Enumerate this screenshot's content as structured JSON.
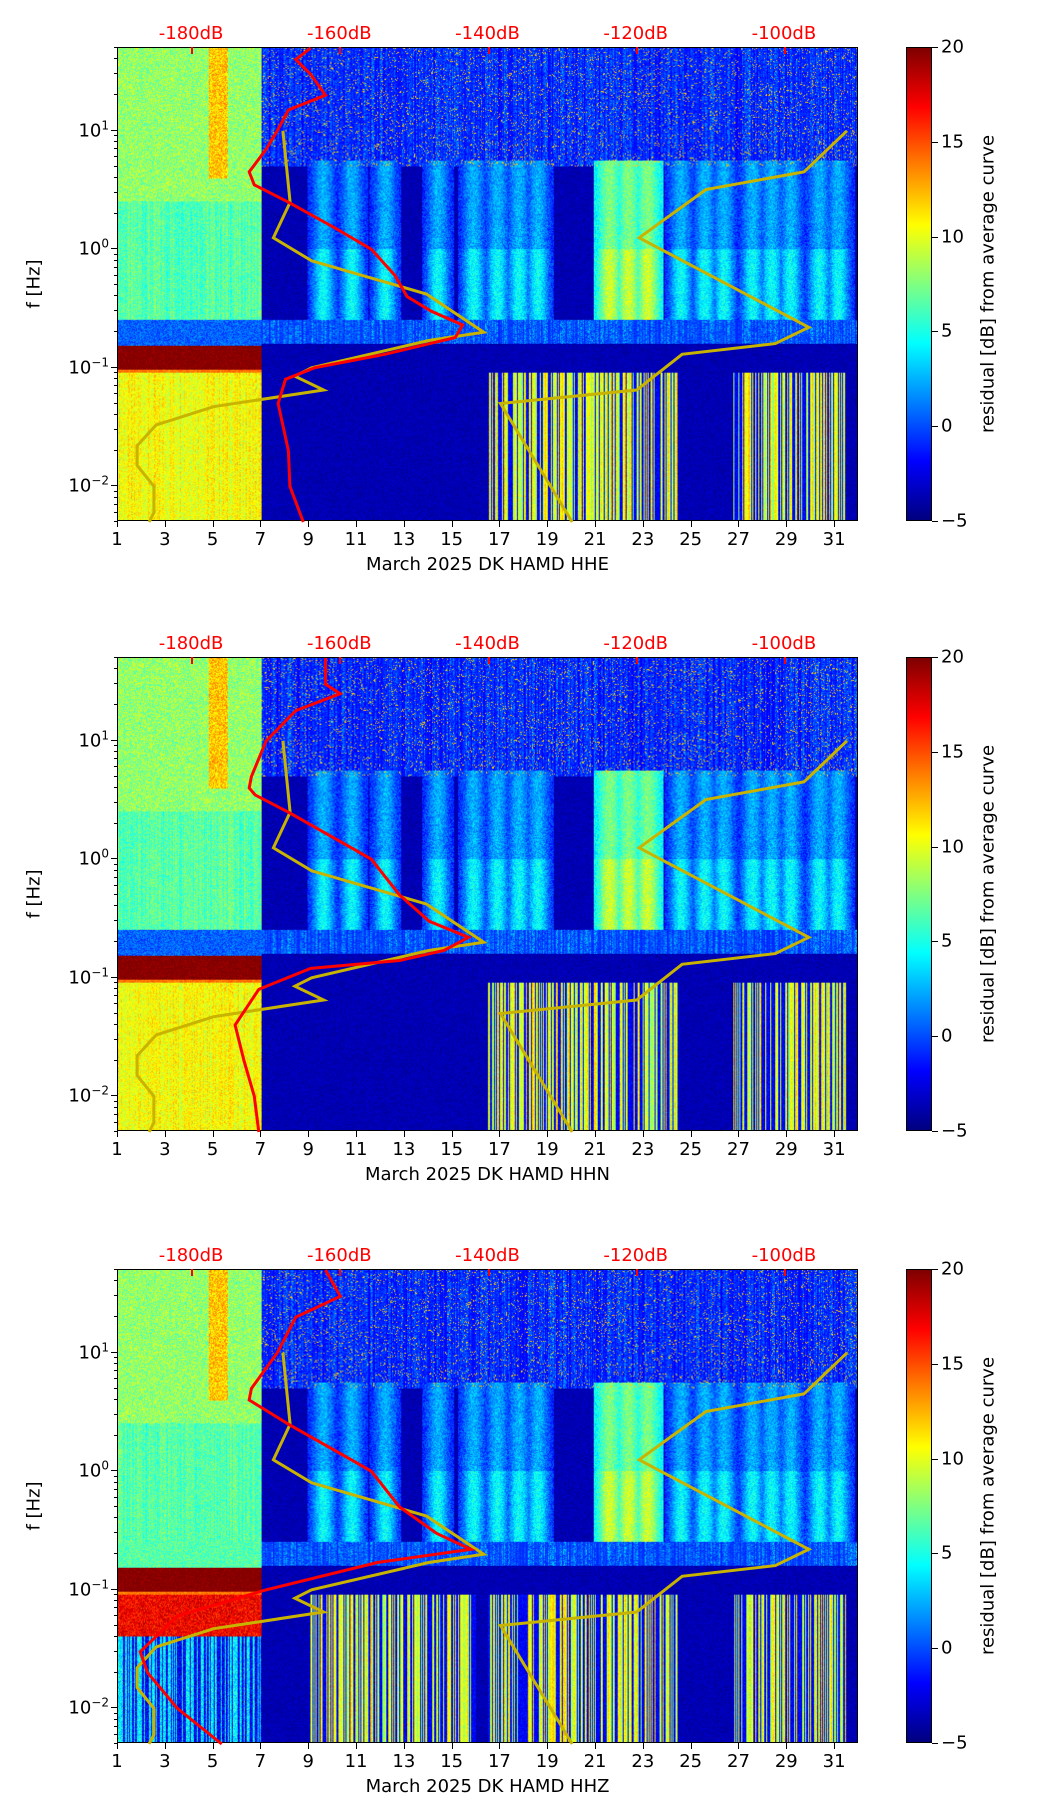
{
  "chart_data": [
    {
      "type": "heatmap",
      "title": "",
      "xlabel": "March 2025 DK HAMD  HHE",
      "ylabel": "f [Hz]",
      "xlim": [
        1,
        32
      ],
      "ylim": [
        0.005,
        50
      ],
      "yscale": "log",
      "x_ticks": [
        "1",
        "3",
        "5",
        "7",
        "9",
        "11",
        "13",
        "15",
        "17",
        "19",
        "21",
        "23",
        "25",
        "27",
        "29",
        "31"
      ],
      "y_ticks": [
        {
          "base": "10",
          "exp": "−2",
          "value": 0.01
        },
        {
          "base": "10",
          "exp": "−1",
          "value": 0.1
        },
        {
          "base": "10",
          "exp": "0",
          "value": 1
        },
        {
          "base": "10",
          "exp": "1",
          "value": 10
        }
      ],
      "top_axis": {
        "ticks": [
          {
            "label": "-180dB",
            "dB": -180
          },
          {
            "label": "-160dB",
            "dB": -160
          },
          {
            "label": "-140dB",
            "dB": -140
          },
          {
            "label": "-120dB",
            "dB": -120
          },
          {
            "label": "-100dB",
            "dB": -100
          }
        ],
        "range_dB": [
          -190,
          -90
        ],
        "color": "#ff0000"
      },
      "colorbar": {
        "label": "residual [dB] from average curve",
        "range": [
          -5,
          20
        ],
        "ticks": [
          "−5",
          "0",
          "5",
          "10",
          "15",
          "20"
        ],
        "colormap": "jet"
      },
      "average_curve": {
        "color": "#ff0000",
        "points_dB_f": [
          [
            -164,
            50
          ],
          [
            -166,
            40
          ],
          [
            -164,
            30
          ],
          [
            -162,
            20
          ],
          [
            -167,
            15
          ],
          [
            -168.5,
            10
          ],
          [
            -170,
            7
          ],
          [
            -172.3,
            4.5
          ],
          [
            -171.6,
            3.5
          ],
          [
            -167,
            2.5
          ],
          [
            -160.6,
            1.5
          ],
          [
            -155.8,
            1.0
          ],
          [
            -152.6,
            0.6
          ],
          [
            -151,
            0.4
          ],
          [
            -147.7,
            0.3
          ],
          [
            -143.5,
            0.23
          ],
          [
            -144.5,
            0.18
          ],
          [
            -154,
            0.13
          ],
          [
            -163.5,
            0.1
          ],
          [
            -167.4,
            0.08
          ],
          [
            -168.4,
            0.05
          ],
          [
            -167,
            0.02
          ],
          [
            -166.8,
            0.01
          ],
          [
            -165,
            0.005
          ]
        ]
      },
      "noise_models": {
        "color": "#c8b400",
        "low": [
          [
            7.9,
            10
          ],
          [
            8.2,
            2.5
          ],
          [
            7.5,
            1.25
          ],
          [
            9.1,
            0.8
          ],
          [
            13.9,
            0.42
          ],
          [
            16.3,
            0.2
          ],
          [
            14,
            0.17
          ],
          [
            9.1,
            0.1
          ],
          [
            8.4,
            0.085
          ],
          [
            9.6,
            0.065
          ],
          [
            5,
            0.047
          ],
          [
            2.6,
            0.033
          ],
          [
            1.8,
            0.022
          ],
          [
            1.8,
            0.015
          ],
          [
            2.5,
            0.01
          ],
          [
            2.5,
            0.006
          ],
          [
            2.3,
            0.005
          ]
        ],
        "high": [
          [
            31.5,
            10
          ],
          [
            29.7,
            4.5
          ],
          [
            25.6,
            3.2
          ],
          [
            22.8,
            1.25
          ],
          [
            29.9,
            0.22
          ],
          [
            28.5,
            0.16
          ],
          [
            24.6,
            0.13
          ],
          [
            22.7,
            0.065
          ],
          [
            17,
            0.05
          ],
          [
            20,
            0.005
          ]
        ]
      }
    },
    {
      "type": "heatmap",
      "title": "",
      "xlabel": "March 2025 DK HAMD  HHN",
      "ylabel": "f [Hz]",
      "xlim": [
        1,
        32
      ],
      "ylim": [
        0.005,
        50
      ],
      "yscale": "log",
      "x_ticks": [
        "1",
        "3",
        "5",
        "7",
        "9",
        "11",
        "13",
        "15",
        "17",
        "19",
        "21",
        "23",
        "25",
        "27",
        "29",
        "31"
      ],
      "y_ticks": [
        {
          "base": "10",
          "exp": "−2",
          "value": 0.01
        },
        {
          "base": "10",
          "exp": "−1",
          "value": 0.1
        },
        {
          "base": "10",
          "exp": "0",
          "value": 1
        },
        {
          "base": "10",
          "exp": "1",
          "value": 10
        }
      ],
      "top_axis": {
        "ticks": [
          {
            "label": "-180dB",
            "dB": -180
          },
          {
            "label": "-160dB",
            "dB": -160
          },
          {
            "label": "-140dB",
            "dB": -140
          },
          {
            "label": "-120dB",
            "dB": -120
          },
          {
            "label": "-100dB",
            "dB": -100
          }
        ],
        "range_dB": [
          -190,
          -90
        ],
        "color": "#ff0000"
      },
      "colorbar": {
        "label": "residual [dB] from average curve",
        "range": [
          -5,
          20
        ],
        "ticks": [
          "−5",
          "0",
          "5",
          "10",
          "15",
          "20"
        ],
        "colormap": "jet"
      },
      "average_curve": {
        "color": "#ff0000",
        "points_dB_f": [
          [
            -162,
            50
          ],
          [
            -162,
            30
          ],
          [
            -160,
            25
          ],
          [
            -166,
            18
          ],
          [
            -170,
            10
          ],
          [
            -172,
            5
          ],
          [
            -172.3,
            4
          ],
          [
            -171.5,
            3.5
          ],
          [
            -167,
            2.5
          ],
          [
            -158,
            1.2
          ],
          [
            -155.8,
            1.0
          ],
          [
            -152,
            0.5
          ],
          [
            -148,
            0.3
          ],
          [
            -142.7,
            0.22
          ],
          [
            -146,
            0.17
          ],
          [
            -152,
            0.14
          ],
          [
            -164,
            0.12
          ],
          [
            -171,
            0.08
          ],
          [
            -174.2,
            0.04
          ],
          [
            -173,
            0.02
          ],
          [
            -171.6,
            0.01
          ],
          [
            -171,
            0.005
          ]
        ]
      },
      "noise_models": {
        "color": "#c8b400",
        "low": [
          [
            7.9,
            10
          ],
          [
            8.2,
            2.5
          ],
          [
            7.5,
            1.25
          ],
          [
            9.1,
            0.8
          ],
          [
            13.9,
            0.42
          ],
          [
            16.3,
            0.2
          ],
          [
            14,
            0.17
          ],
          [
            9.1,
            0.1
          ],
          [
            8.4,
            0.085
          ],
          [
            9.6,
            0.065
          ],
          [
            5,
            0.047
          ],
          [
            2.6,
            0.033
          ],
          [
            1.8,
            0.022
          ],
          [
            1.8,
            0.015
          ],
          [
            2.5,
            0.01
          ],
          [
            2.5,
            0.006
          ],
          [
            2.3,
            0.005
          ]
        ],
        "high": [
          [
            31.5,
            10
          ],
          [
            29.7,
            4.5
          ],
          [
            25.6,
            3.2
          ],
          [
            22.8,
            1.25
          ],
          [
            29.9,
            0.22
          ],
          [
            28.5,
            0.16
          ],
          [
            24.6,
            0.13
          ],
          [
            22.7,
            0.065
          ],
          [
            17,
            0.05
          ],
          [
            20,
            0.005
          ]
        ]
      }
    },
    {
      "type": "heatmap",
      "title": "",
      "xlabel": "March 2025 DK HAMD  HHZ",
      "ylabel": "f [Hz]",
      "xlim": [
        1,
        32
      ],
      "ylim": [
        0.005,
        50
      ],
      "yscale": "log",
      "x_ticks": [
        "1",
        "3",
        "5",
        "7",
        "9",
        "11",
        "13",
        "15",
        "17",
        "19",
        "21",
        "23",
        "25",
        "27",
        "29",
        "31"
      ],
      "y_ticks": [
        {
          "base": "10",
          "exp": "−2",
          "value": 0.01
        },
        {
          "base": "10",
          "exp": "−1",
          "value": 0.1
        },
        {
          "base": "10",
          "exp": "0",
          "value": 1
        },
        {
          "base": "10",
          "exp": "1",
          "value": 10
        }
      ],
      "top_axis": {
        "ticks": [
          {
            "label": "-180dB",
            "dB": -180
          },
          {
            "label": "-160dB",
            "dB": -160
          },
          {
            "label": "-140dB",
            "dB": -140
          },
          {
            "label": "-120dB",
            "dB": -120
          },
          {
            "label": "-100dB",
            "dB": -100
          }
        ],
        "range_dB": [
          -190,
          -90
        ],
        "color": "#ff0000"
      },
      "colorbar": {
        "label": "residual [dB] from average curve",
        "range": [
          -5,
          20
        ],
        "ticks": [
          "−5",
          "0",
          "5",
          "10",
          "15",
          "20"
        ],
        "colormap": "jet"
      },
      "average_curve": {
        "color": "#ff0000",
        "points_dB_f": [
          [
            -162,
            50
          ],
          [
            -160,
            30
          ],
          [
            -166,
            20
          ],
          [
            -168.5,
            10
          ],
          [
            -172,
            5
          ],
          [
            -172.3,
            4
          ],
          [
            -167,
            2.5
          ],
          [
            -158,
            1.2
          ],
          [
            -155.8,
            1.0
          ],
          [
            -152,
            0.5
          ],
          [
            -147,
            0.3
          ],
          [
            -142.4,
            0.22
          ],
          [
            -155,
            0.17
          ],
          [
            -170,
            0.1
          ],
          [
            -182,
            0.06
          ],
          [
            -187,
            0.03
          ],
          [
            -186,
            0.02
          ],
          [
            -182,
            0.01
          ],
          [
            -176,
            0.005
          ]
        ]
      },
      "noise_models": {
        "color": "#c8b400",
        "low": [
          [
            7.9,
            10
          ],
          [
            8.2,
            2.5
          ],
          [
            7.5,
            1.25
          ],
          [
            9.1,
            0.8
          ],
          [
            13.9,
            0.42
          ],
          [
            16.3,
            0.2
          ],
          [
            14,
            0.17
          ],
          [
            9.1,
            0.1
          ],
          [
            8.4,
            0.085
          ],
          [
            9.6,
            0.065
          ],
          [
            5,
            0.047
          ],
          [
            2.6,
            0.033
          ],
          [
            1.8,
            0.022
          ],
          [
            1.8,
            0.015
          ],
          [
            2.5,
            0.01
          ],
          [
            2.5,
            0.006
          ],
          [
            2.3,
            0.005
          ]
        ],
        "high": [
          [
            31.5,
            10
          ],
          [
            29.7,
            4.5
          ],
          [
            25.6,
            3.2
          ],
          [
            22.8,
            1.25
          ],
          [
            29.9,
            0.22
          ],
          [
            28.5,
            0.16
          ],
          [
            24.6,
            0.13
          ],
          [
            22.7,
            0.065
          ],
          [
            17,
            0.05
          ],
          [
            20,
            0.005
          ]
        ]
      }
    }
  ]
}
